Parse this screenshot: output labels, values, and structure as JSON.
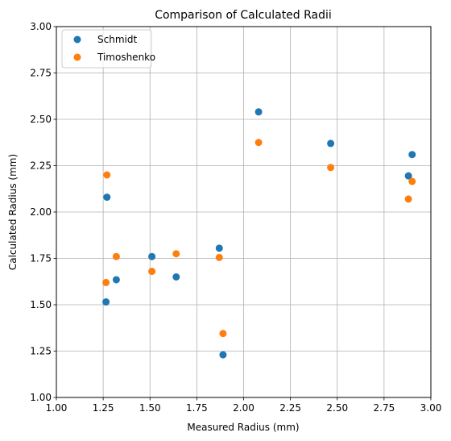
{
  "chart_data": {
    "type": "scatter",
    "title": "Comparison of Calculated Radii",
    "xlabel": "Measured Radius (mm)",
    "ylabel": "Calculated Radius (mm)",
    "xlim": [
      1.0,
      3.0
    ],
    "ylim": [
      1.0,
      3.0
    ],
    "xticks": [
      "1.00",
      "1.25",
      "1.50",
      "1.75",
      "2.00",
      "2.25",
      "2.50",
      "2.75",
      "3.00"
    ],
    "yticks": [
      "1.00",
      "1.25",
      "1.50",
      "1.75",
      "2.00",
      "2.25",
      "2.50",
      "2.75",
      "3.00"
    ],
    "grid": true,
    "legend_position": "top-left",
    "series": [
      {
        "name": "Schmidt",
        "color": "#1f77b4",
        "points": [
          {
            "x": 1.265,
            "y": 1.515
          },
          {
            "x": 1.27,
            "y": 2.08
          },
          {
            "x": 1.32,
            "y": 1.635
          },
          {
            "x": 1.51,
            "y": 1.76
          },
          {
            "x": 1.64,
            "y": 1.65
          },
          {
            "x": 1.87,
            "y": 1.805
          },
          {
            "x": 1.89,
            "y": 1.23
          },
          {
            "x": 2.08,
            "y": 2.54
          },
          {
            "x": 2.465,
            "y": 2.37
          },
          {
            "x": 2.88,
            "y": 2.195
          },
          {
            "x": 2.9,
            "y": 2.31
          }
        ]
      },
      {
        "name": "Timoshenko",
        "color": "#ff7f0e",
        "points": [
          {
            "x": 1.265,
            "y": 1.62
          },
          {
            "x": 1.27,
            "y": 2.2
          },
          {
            "x": 1.32,
            "y": 1.76
          },
          {
            "x": 1.51,
            "y": 1.68
          },
          {
            "x": 1.64,
            "y": 1.775
          },
          {
            "x": 1.87,
            "y": 1.755
          },
          {
            "x": 1.89,
            "y": 1.345
          },
          {
            "x": 2.08,
            "y": 2.375
          },
          {
            "x": 2.465,
            "y": 2.24
          },
          {
            "x": 2.88,
            "y": 2.07
          },
          {
            "x": 2.9,
            "y": 2.165
          }
        ]
      }
    ]
  }
}
